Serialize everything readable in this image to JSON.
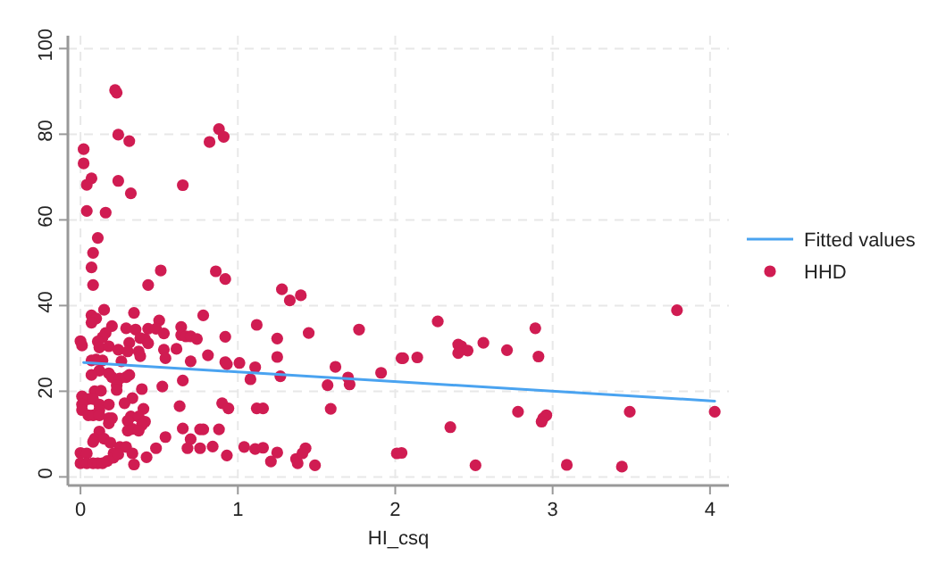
{
  "chart_data": {
    "type": "scatter",
    "xlabel": "HI_csq",
    "xlim": [
      -0.08,
      4.12
    ],
    "ylim": [
      -2,
      103
    ],
    "xticks": [
      0,
      1,
      2,
      3,
      4
    ],
    "yticks": [
      0,
      20,
      40,
      60,
      80,
      100
    ],
    "grid": true,
    "legend": "right",
    "series": [
      {
        "name": "Fitted values",
        "type": "line",
        "color": "#4aa3f0",
        "x": [
          0.02,
          4.03
        ],
        "values": [
          26.7,
          17.7
        ]
      },
      {
        "name": "HHD",
        "color": "#d01c52",
        "marker": "circle",
        "x": [
          0.22,
          0.23,
          0.24,
          0.31,
          0.02,
          0.02,
          0.07,
          0.04,
          0.24,
          0.32,
          0.65,
          0.88,
          0.82,
          0.91,
          0.04,
          0.16,
          0.11,
          0.08,
          0.07,
          0.51,
          0.86,
          0.92,
          0.08,
          0.43,
          1.28,
          1.4,
          1.33,
          0.15,
          0.07,
          0.1,
          0.07,
          0.34,
          0.5,
          0.78,
          0.2,
          0.29,
          0.35,
          0.43,
          0.48,
          0.64,
          1.12,
          1.45,
          1.77,
          0.16,
          0.14,
          0.38,
          0.53,
          0.64,
          0.67,
          0.7,
          0.74,
          0.92,
          1.25,
          0.0,
          0.01,
          0.11,
          0.31,
          0.41,
          0.43,
          0.12,
          0.18,
          0.24,
          0.3,
          0.37,
          0.38,
          0.53,
          0.54,
          0.61,
          0.81,
          1.25,
          0.07,
          0.1,
          0.14,
          0.26,
          0.7,
          0.92,
          0.93,
          1.01,
          1.11,
          1.62,
          1.91,
          2.04,
          0.12,
          0.18,
          0.07,
          0.2,
          0.25,
          0.29,
          0.31,
          0.65,
          1.08,
          1.27,
          1.7,
          1.71,
          0.23,
          0.23,
          0.39,
          0.52,
          1.57,
          0.09,
          0.13,
          0.01,
          0.05,
          0.08,
          0.01,
          0.12,
          0.18,
          0.01,
          0.12,
          0.05,
          0.08,
          0.12,
          0.18,
          0.33,
          0.28,
          0.4,
          0.32,
          0.37,
          0.41,
          0.39,
          0.2,
          0.18,
          0.3,
          0.63,
          0.9,
          0.94,
          1.12,
          1.16,
          1.59,
          0.12,
          0.09,
          0.08,
          0.3,
          0.33,
          0.37,
          0.65,
          0.76,
          0.78,
          0.88,
          0.54,
          0.7,
          0.15,
          0.19,
          0.25,
          0.29,
          0.68,
          0.76,
          0.84,
          0.93,
          1.04,
          1.11,
          1.16,
          1.25,
          1.21,
          1.37,
          1.38,
          1.43,
          1.41,
          1.49,
          0.48,
          0.42,
          0.33,
          0.34,
          0.21,
          0.0,
          0.04,
          0.0,
          0.04,
          0.08,
          0.11,
          0.14,
          0.17,
          0.21,
          0.24,
          2.01,
          2.04,
          3.79,
          2.27,
          2.89,
          2.4,
          2.42,
          2.46,
          2.4,
          2.56,
          2.71,
          2.05,
          2.14,
          2.91,
          2.78,
          2.96,
          2.94,
          2.93,
          3.49,
          4.03,
          2.35,
          2.51,
          3.09,
          3.44
        ],
        "values": [
          90.3,
          89.7,
          79.9,
          78.4,
          76.5,
          73.2,
          69.7,
          68.2,
          69.1,
          66.2,
          68.1,
          81.2,
          78.2,
          79.4,
          62.1,
          61.7,
          55.8,
          52.3,
          48.9,
          48.2,
          48.0,
          46.2,
          44.8,
          44.8,
          43.8,
          42.4,
          41.2,
          39.0,
          37.7,
          37.0,
          36.0,
          38.3,
          36.5,
          37.7,
          35.2,
          34.7,
          34.4,
          34.6,
          34.6,
          35.0,
          35.5,
          33.6,
          34.4,
          33.6,
          32.6,
          32.4,
          33.5,
          33.1,
          32.8,
          32.8,
          32.2,
          32.7,
          32.3,
          31.7,
          30.7,
          31.6,
          31.3,
          32.2,
          31.2,
          30.2,
          30.5,
          29.7,
          29.3,
          29.3,
          28.2,
          29.7,
          27.7,
          29.9,
          28.4,
          28.0,
          27.2,
          27.4,
          27.2,
          27.0,
          27.0,
          26.8,
          26.3,
          26.6,
          25.6,
          25.7,
          24.3,
          27.7,
          24.8,
          24.2,
          23.8,
          23.3,
          23.0,
          23.3,
          23.8,
          22.5,
          22.8,
          23.5,
          23.2,
          21.6,
          21.4,
          20.3,
          20.5,
          21.1,
          21.4,
          20.0,
          20.1,
          18.8,
          18.2,
          18.2,
          16.9,
          16.9,
          16.9,
          15.6,
          15.6,
          14.4,
          14.4,
          14.4,
          13.7,
          18.4,
          17.2,
          15.9,
          14.1,
          14.1,
          12.9,
          12.1,
          13.7,
          12.5,
          13.1,
          16.5,
          17.2,
          16.0,
          16.0,
          16.0,
          15.9,
          10.6,
          8.9,
          8.2,
          10.8,
          11.2,
          10.8,
          11.3,
          11.1,
          11.1,
          11.1,
          9.3,
          8.8,
          8.9,
          8.0,
          7.0,
          7.0,
          6.7,
          6.7,
          7.1,
          5.0,
          7.0,
          6.5,
          6.8,
          5.7,
          3.6,
          4.2,
          3.2,
          6.7,
          5.5,
          2.7,
          6.7,
          4.6,
          5.5,
          2.9,
          5.5,
          5.6,
          5.5,
          3.2,
          3.2,
          3.2,
          3.2,
          3.2,
          3.7,
          4.5,
          5.3,
          5.5,
          5.6,
          38.9,
          36.3,
          34.7,
          30.9,
          30.5,
          29.5,
          28.9,
          31.3,
          29.6,
          27.7,
          27.9,
          28.1,
          15.2,
          14.4,
          13.7,
          12.9,
          15.2,
          15.2,
          11.6,
          2.7,
          2.8,
          2.4
        ]
      }
    ]
  }
}
